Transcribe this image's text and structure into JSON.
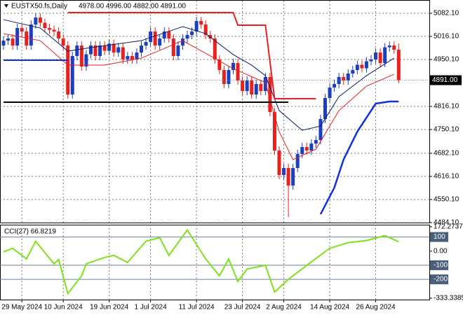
{
  "chart_data": [
    {
      "type": "candlestick",
      "title": "EUSTX50.fs,Daily",
      "subtitle": "4978.00 4996.00 4882.00 4891.00",
      "up_color": "#1c3fbf",
      "down_color": "#e8201e",
      "categories": [
        null,
        null,
        null,
        null,
        "29 May 2024",
        null,
        null,
        null,
        null,
        null,
        null,
        null,
        null,
        "10 Jun 2024",
        null,
        null,
        null,
        null,
        null,
        null,
        null,
        null,
        null,
        "19 Jun 2024",
        null,
        null,
        null,
        null,
        null,
        null,
        null,
        null,
        "1 Jul 2024",
        null,
        null,
        null,
        null,
        null,
        null,
        null,
        null,
        null,
        "11 Jul 2024",
        null,
        null,
        null,
        null,
        null,
        null,
        null,
        null,
        null,
        "23 Jul 2024",
        null,
        null,
        null,
        null,
        null,
        null,
        null,
        null,
        "2 Aug 2024",
        null,
        null,
        null,
        null,
        null,
        null,
        null,
        null,
        null,
        "14 Aug 2024",
        null,
        null,
        null,
        null,
        null,
        null,
        null,
        null,
        null,
        "26 Aug 2024",
        null,
        null,
        null,
        null,
        null
      ],
      "open": [
        4990,
        5004,
        5010,
        4990,
        5040,
        5030,
        4990,
        5050,
        5070,
        5055,
        5040,
        5035,
        5030,
        5010,
        4990,
        4850,
        4960,
        4990,
        4930,
        4965,
        4990,
        4960,
        4990,
        4975,
        4995,
        4970,
        4985,
        4950,
        4960,
        4950,
        4970,
        4990,
        5000,
        5030,
        4990,
        5010,
        5030,
        5010,
        4960,
        4990,
        5010,
        5020,
        5030,
        5060,
        5050,
        5020,
        5010,
        4950,
        4920,
        4880,
        4920,
        4940,
        4890,
        4860,
        4890,
        4850,
        4880,
        4860,
        4900,
        4800,
        4690,
        4620,
        4640,
        4590,
        4640,
        4680,
        4700,
        4690,
        4710,
        4720,
        4780,
        4840,
        4870,
        4880,
        4900,
        4890,
        4910,
        4920,
        4935,
        4925,
        4945,
        4950,
        4970,
        4940,
        4985,
        4990,
        4978
      ],
      "high": [
        5016,
        5022,
        5022,
        5052,
        5052,
        5042,
        5062,
        5082,
        5082,
        5067,
        5052,
        5047,
        5042,
        5022,
        5002,
        4972,
        5002,
        5002,
        4977,
        5002,
        5002,
        5002,
        5002,
        5007,
        5007,
        4997,
        4997,
        4972,
        4972,
        4982,
        5002,
        5012,
        5042,
        5042,
        5022,
        5042,
        5042,
        5022,
        5002,
        5022,
        5032,
        5042,
        5072,
        5072,
        5062,
        5032,
        5022,
        4962,
        4932,
        4932,
        4952,
        4952,
        4902,
        4902,
        4902,
        4892,
        4892,
        4912,
        4912,
        4812,
        4702,
        4652,
        4652,
        4652,
        4692,
        4712,
        4712,
        4722,
        4732,
        4792,
        4852,
        4882,
        4892,
        4912,
        4912,
        4922,
        4932,
        4947,
        4947,
        4957,
        4962,
        4982,
        4982,
        4997,
        5002,
        5002,
        4996
      ],
      "low": [
        4978,
        4992,
        4978,
        4978,
        5018,
        4978,
        4978,
        5038,
        5043,
        5028,
        5023,
        5018,
        4998,
        4978,
        4838,
        4838,
        4948,
        4918,
        4918,
        4953,
        4948,
        4948,
        4963,
        4963,
        4958,
        4958,
        4938,
        4938,
        4938,
        4938,
        4958,
        4978,
        4988,
        4978,
        4978,
        4998,
        4998,
        4948,
        4948,
        4978,
        4998,
        5008,
        5018,
        5038,
        5008,
        4998,
        4938,
        4908,
        4868,
        4868,
        4908,
        4878,
        4848,
        4848,
        4838,
        4838,
        4848,
        4848,
        4788,
        4678,
        4608,
        4608,
        4500,
        4578,
        4628,
        4668,
        4678,
        4678,
        4698,
        4708,
        4768,
        4828,
        4858,
        4868,
        4878,
        4878,
        4898,
        4908,
        4913,
        4913,
        4933,
        4938,
        4928,
        4928,
        4973,
        4966,
        4882
      ],
      "close": [
        5004,
        5010,
        4990,
        5040,
        5030,
        4990,
        5050,
        5070,
        5055,
        5040,
        5035,
        5030,
        5010,
        4990,
        4850,
        4960,
        4990,
        4930,
        4965,
        4990,
        4960,
        4990,
        4975,
        4995,
        4970,
        4985,
        4950,
        4960,
        4950,
        4970,
        4990,
        5000,
        5030,
        4990,
        5010,
        5030,
        5010,
        4960,
        4990,
        5010,
        5020,
        5030,
        5060,
        5050,
        5020,
        5010,
        4950,
        4920,
        4880,
        4920,
        4940,
        4890,
        4860,
        4890,
        4850,
        4880,
        4860,
        4900,
        4800,
        4690,
        4620,
        4640,
        4590,
        4640,
        4680,
        4700,
        4690,
        4710,
        4720,
        4780,
        4840,
        4870,
        4880,
        4900,
        4890,
        4910,
        4920,
        4935,
        4925,
        4945,
        4950,
        4970,
        4940,
        4985,
        4990,
        4978,
        4891
      ],
      "overlays": [
        {
          "color": "#0a1a6e",
          "width": 1,
          "points": [
            [
              0,
              5064
            ],
            [
              8,
              5040
            ],
            [
              14,
              4974
            ],
            [
              19,
              4984
            ],
            [
              30,
              5004
            ],
            [
              39,
              5044
            ],
            [
              44,
              5024
            ],
            [
              50,
              4964
            ],
            [
              54,
              4934
            ],
            [
              57,
              4904
            ],
            [
              60,
              4804
            ],
            [
              65,
              4748
            ],
            [
              69,
              4760
            ],
            [
              73,
              4844
            ],
            [
              79,
              4904
            ],
            [
              85,
              4954
            ]
          ]
        },
        {
          "color": "#e8201e",
          "width": 1,
          "points": [
            [
              0,
              5024
            ],
            [
              8,
              5004
            ],
            [
              14,
              4934
            ],
            [
              22,
              4934
            ],
            [
              30,
              4954
            ],
            [
              39,
              5004
            ],
            [
              50,
              4924
            ],
            [
              57,
              4884
            ],
            [
              60,
              4744
            ],
            [
              63,
              4664
            ],
            [
              68,
              4694
            ],
            [
              73,
              4804
            ],
            [
              79,
              4874
            ],
            [
              85,
              4908
            ]
          ]
        },
        {
          "color": "#1030d8",
          "width": 2.5,
          "points": [
            [
              69,
              4508
            ],
            [
              72,
              4584
            ],
            [
              74,
              4664
            ],
            [
              77,
              4744
            ],
            [
              81,
              4824
            ],
            [
              84,
              4830
            ],
            [
              86,
              4830
            ]
          ]
        },
        {
          "color": "#e8201e",
          "width": 2,
          "points": [
            [
              14,
              5084
            ],
            [
              50,
              5084
            ],
            [
              51,
              5048
            ],
            [
              57,
              5048
            ],
            [
              59,
              4838
            ],
            [
              68,
              4838
            ]
          ]
        },
        {
          "color": "#000000",
          "width": 2,
          "points": [
            [
              0,
              4828
            ],
            [
              62,
              4828
            ]
          ]
        },
        {
          "color": "#1030d8",
          "width": 2,
          "points": [
            [
              0,
              4948
            ],
            [
              14,
              4948
            ]
          ]
        }
      ],
      "last_price": {
        "value": 4891,
        "label": "4891.00"
      },
      "ylim": [
        4484.1,
        5118.1
      ],
      "yticks": [
        {
          "value": 5082.1,
          "label": "5082.10"
        },
        {
          "value": 5016.1,
          "label": "5016.10"
        },
        {
          "value": 4950.1,
          "label": "4950.10"
        },
        {
          "value": 4816.1,
          "label": "4816.10"
        },
        {
          "value": 4750.1,
          "label": "4750.10"
        },
        {
          "value": 4682.1,
          "label": "4682.10"
        },
        {
          "value": 4616.1,
          "label": "4616.10"
        },
        {
          "value": 4550.1,
          "label": "4550.10"
        },
        {
          "value": 4484.1,
          "label": "4484.10"
        }
      ],
      "grid": true
    },
    {
      "type": "line",
      "title": "CCI(27) 66.8219",
      "series": [
        {
          "color": "#7fe01c",
          "x": [
            0,
            2,
            5,
            7,
            11,
            12,
            14,
            17,
            18,
            22,
            24,
            27,
            31,
            34,
            36,
            40,
            44,
            47,
            49,
            51,
            53,
            57,
            59,
            62,
            66,
            71,
            75,
            79,
            83,
            86
          ],
          "values": [
            -5,
            20,
            -55,
            70,
            -90,
            -60,
            -300,
            -175,
            -90,
            -45,
            -30,
            -80,
            70,
            95,
            -30,
            150,
            -55,
            -175,
            -55,
            -215,
            -127,
            -100,
            -290,
            -200,
            -100,
            20,
            60,
            75,
            110,
            66.8219
          ]
        }
      ],
      "levels": [
        100,
        -100,
        -200
      ],
      "ylim": [
        -333.3385,
        172.2737
      ],
      "yticks": [
        172.2737,
        100,
        {
          "value": 0,
          "label": "0.00"
        },
        -100,
        -200,
        -333.3385
      ]
    }
  ]
}
